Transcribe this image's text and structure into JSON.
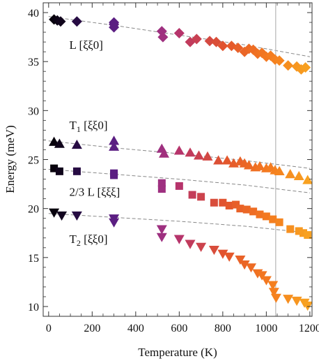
{
  "chart_data": {
    "type": "scatter",
    "xlabel": "Temperature (K)",
    "ylabel": "Energy (meV)",
    "xlim": [
      -25,
      1210
    ],
    "ylim": [
      9,
      41
    ],
    "xticks": [
      0,
      200,
      400,
      600,
      800,
      1000,
      1200
    ],
    "yticks": [
      10,
      15,
      20,
      25,
      30,
      35,
      40
    ],
    "grid": false,
    "vertical_line_x": 1043,
    "colormap": [
      "#000000",
      "#3d1268",
      "#7a2a9e",
      "#b8346a",
      "#e2542d",
      "#f47a1f",
      "#f8a520"
    ],
    "series": [
      {
        "name": "L [ξξ0]",
        "marker": "diamond",
        "points": [
          [
            25,
            39.3
          ],
          [
            40,
            39.2
          ],
          [
            55,
            39.1
          ],
          [
            130,
            39.1
          ],
          [
            300,
            39.0
          ],
          [
            300,
            38.8
          ],
          [
            300,
            38.5
          ],
          [
            520,
            38.1
          ],
          [
            525,
            37.5
          ],
          [
            600,
            37.9
          ],
          [
            650,
            37.0
          ],
          [
            680,
            37.3
          ],
          [
            740,
            37.1
          ],
          [
            770,
            37.0
          ],
          [
            800,
            36.6
          ],
          [
            840,
            36.6
          ],
          [
            870,
            36.4
          ],
          [
            900,
            36.0
          ],
          [
            920,
            36.3
          ],
          [
            940,
            36.2
          ],
          [
            960,
            35.8
          ],
          [
            980,
            35.9
          ],
          [
            1000,
            35.5
          ],
          [
            1020,
            35.6
          ],
          [
            1040,
            35.2
          ],
          [
            1060,
            35.1
          ],
          [
            1100,
            34.6
          ],
          [
            1140,
            34.5
          ],
          [
            1160,
            34.2
          ],
          [
            1180,
            34.4
          ]
        ]
      },
      {
        "name": "T1 [ξξ0]",
        "marker": "triangle-up",
        "points": [
          [
            25,
            26.8
          ],
          [
            50,
            26.6
          ],
          [
            130,
            26.5
          ],
          [
            300,
            26.9
          ],
          [
            300,
            26.3
          ],
          [
            520,
            26.1
          ],
          [
            530,
            25.6
          ],
          [
            600,
            25.9
          ],
          [
            650,
            25.7
          ],
          [
            690,
            25.4
          ],
          [
            730,
            25.3
          ],
          [
            780,
            24.9
          ],
          [
            820,
            24.9
          ],
          [
            850,
            24.6
          ],
          [
            880,
            24.8
          ],
          [
            900,
            24.6
          ],
          [
            920,
            24.4
          ],
          [
            950,
            24.2
          ],
          [
            970,
            24.3
          ],
          [
            1000,
            24.1
          ],
          [
            1020,
            24.2
          ],
          [
            1040,
            23.9
          ],
          [
            1060,
            23.8
          ],
          [
            1110,
            23.5
          ],
          [
            1150,
            23.3
          ],
          [
            1190,
            22.9
          ]
        ]
      },
      {
        "name": "2/3 L [ξξξ]",
        "marker": "square",
        "points": [
          [
            25,
            24.1
          ],
          [
            50,
            23.8
          ],
          [
            130,
            23.8
          ],
          [
            300,
            23.6
          ],
          [
            300,
            23.4
          ],
          [
            520,
            22.6
          ],
          [
            520,
            22.0
          ],
          [
            600,
            22.3
          ],
          [
            660,
            21.4
          ],
          [
            700,
            21.2
          ],
          [
            760,
            20.6
          ],
          [
            800,
            20.6
          ],
          [
            830,
            20.3
          ],
          [
            860,
            20.4
          ],
          [
            880,
            20.0
          ],
          [
            910,
            19.9
          ],
          [
            940,
            19.7
          ],
          [
            970,
            19.4
          ],
          [
            1000,
            19.2
          ],
          [
            1030,
            18.9
          ],
          [
            1060,
            18.6
          ],
          [
            1110,
            17.9
          ],
          [
            1150,
            17.7
          ],
          [
            1170,
            17.5
          ],
          [
            1190,
            17.3
          ]
        ]
      },
      {
        "name": "T2 [ξξ0]",
        "marker": "triangle-down",
        "points": [
          [
            25,
            19.6
          ],
          [
            60,
            19.3
          ],
          [
            130,
            19.3
          ],
          [
            300,
            19.0
          ],
          [
            300,
            18.6
          ],
          [
            520,
            17.9
          ],
          [
            520,
            17.1
          ],
          [
            600,
            16.9
          ],
          [
            650,
            16.4
          ],
          [
            700,
            16.1
          ],
          [
            760,
            15.8
          ],
          [
            800,
            15.4
          ],
          [
            830,
            15.1
          ],
          [
            880,
            14.8
          ],
          [
            900,
            14.3
          ],
          [
            930,
            14.0
          ],
          [
            960,
            13.4
          ],
          [
            980,
            13.2
          ],
          [
            1000,
            12.7
          ],
          [
            1030,
            12.2
          ],
          [
            1035,
            11.5
          ],
          [
            1045,
            10.9
          ],
          [
            1100,
            10.8
          ],
          [
            1140,
            10.6
          ],
          [
            1175,
            10.4
          ],
          [
            1190,
            10.1
          ]
        ]
      }
    ],
    "fits": [
      {
        "series": "L [ξξ0]",
        "points": [
          [
            0,
            39.6
          ],
          [
            300,
            38.7
          ],
          [
            600,
            37.7
          ],
          [
            900,
            36.7
          ],
          [
            1200,
            35.5
          ]
        ]
      },
      {
        "series": "T1 [ξξ0]",
        "points": [
          [
            0,
            26.9
          ],
          [
            300,
            26.2
          ],
          [
            600,
            25.6
          ],
          [
            900,
            24.9
          ],
          [
            1200,
            24.1
          ]
        ]
      },
      {
        "series": "T1 [ξξ0]",
        "points": [
          [
            0,
            24.0
          ],
          [
            300,
            23.5
          ],
          [
            600,
            23.0
          ],
          [
            900,
            22.4
          ],
          [
            1200,
            21.6
          ]
        ]
      },
      {
        "series": "T2 [ξξ0]",
        "points": [
          [
            0,
            19.5
          ],
          [
            300,
            19.1
          ],
          [
            600,
            18.7
          ],
          [
            900,
            18.2
          ],
          [
            1200,
            17.5
          ]
        ]
      }
    ],
    "annotations": [
      {
        "text": "L [ξξ0]",
        "x": 95,
        "y": 36.3
      },
      {
        "text": "T",
        "sub": "1",
        "rest": " [ξξ0]",
        "x": 95,
        "y": 28.1
      },
      {
        "text": "2/3 L [ξξξ]",
        "x": 95,
        "y": 21.3
      },
      {
        "text": "T",
        "sub": "2",
        "rest": " [ξξ0]",
        "x": 95,
        "y": 16.5
      }
    ]
  }
}
